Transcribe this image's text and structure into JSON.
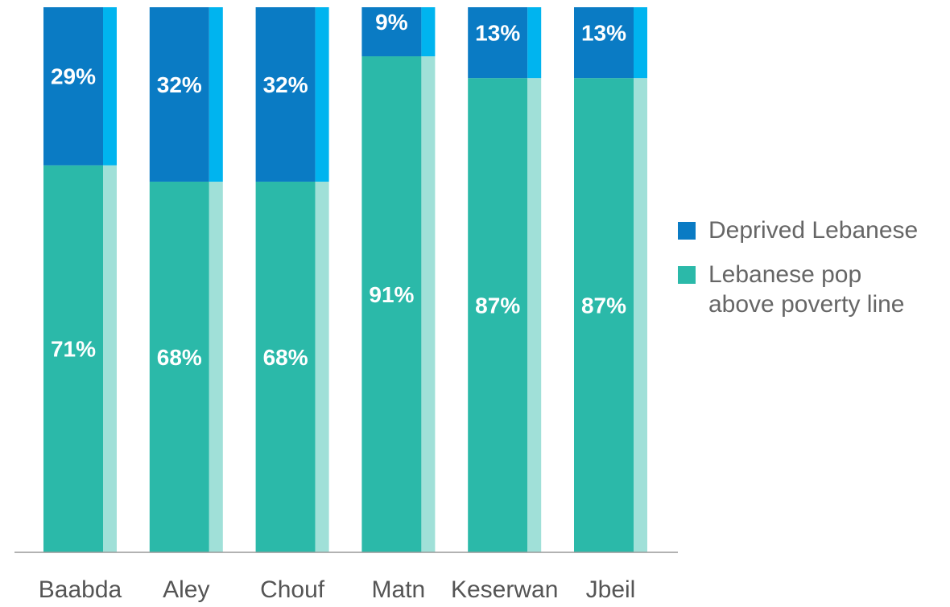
{
  "chart_data": {
    "type": "bar",
    "stacked": true,
    "categories": [
      "Baabda",
      "Aley",
      "Chouf",
      "Matn",
      "Keserwan",
      "Jbeil"
    ],
    "series": [
      {
        "name": "Deprived Lebanese",
        "color": "#0a7bc4",
        "values": [
          29,
          32,
          32,
          9,
          13,
          13
        ],
        "value_labels": [
          "29%",
          "32%",
          "32%",
          "9%",
          "13%",
          "13%"
        ]
      },
      {
        "name": "Lebanese pop above poverty line",
        "color": "#2bb9a9",
        "values": [
          71,
          68,
          68,
          91,
          87,
          87
        ],
        "value_labels": [
          "71%",
          "68%",
          "68%",
          "91%",
          "87%",
          "87%"
        ]
      }
    ],
    "legend": "right"
  }
}
